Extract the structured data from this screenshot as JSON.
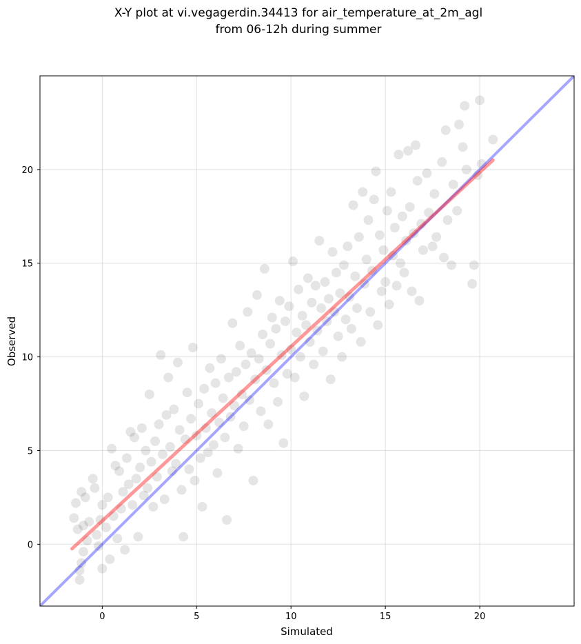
{
  "chart_data": {
    "type": "scatter",
    "title": "X-Y plot at vi.vegagerdin.34413 for air_temperature_at_2m_agl",
    "subtitle": "from 06-12h during summer",
    "xlabel": "Simulated",
    "ylabel": "Observed",
    "xlim": [
      -3.3,
      25.0
    ],
    "ylim": [
      -3.3,
      25.0
    ],
    "xticks": [
      0,
      5,
      10,
      15,
      20
    ],
    "yticks": [
      0,
      5,
      10,
      15,
      20
    ],
    "grid": true,
    "point_color": "#000000",
    "point_alpha": 0.1,
    "reference_line": {
      "slope": 1,
      "intercept": 0,
      "color": "#0000ff",
      "alpha": 0.35
    },
    "regression_line": {
      "slope": 0.93,
      "intercept": 1.25,
      "x_range": [
        -1.6,
        20.7
      ],
      "color": "#ff0000",
      "alpha": 0.4
    },
    "points": [
      [
        -1.5,
        1.4
      ],
      [
        -1.4,
        2.2
      ],
      [
        -1.3,
        0.8
      ],
      [
        -1.2,
        -1.4
      ],
      [
        -1.2,
        -1.9
      ],
      [
        -1.1,
        -1.0
      ],
      [
        -1.1,
        2.8
      ],
      [
        -1.0,
        -0.4
      ],
      [
        -1.0,
        1.0
      ],
      [
        -0.9,
        2.5
      ],
      [
        -0.8,
        0.2
      ],
      [
        -0.7,
        1.2
      ],
      [
        -0.5,
        3.5
      ],
      [
        -0.4,
        3.0
      ],
      [
        -0.3,
        0.5
      ],
      [
        -0.2,
        -0.1
      ],
      [
        -0.1,
        1.3
      ],
      [
        0.0,
        2.1
      ],
      [
        0.0,
        -1.3
      ],
      [
        0.2,
        0.9
      ],
      [
        0.3,
        2.5
      ],
      [
        0.4,
        -0.8
      ],
      [
        0.5,
        5.1
      ],
      [
        0.6,
        1.5
      ],
      [
        0.7,
        4.2
      ],
      [
        0.8,
        0.3
      ],
      [
        0.9,
        3.9
      ],
      [
        1.0,
        1.9
      ],
      [
        1.1,
        2.8
      ],
      [
        1.2,
        -0.3
      ],
      [
        1.3,
        4.6
      ],
      [
        1.4,
        3.2
      ],
      [
        1.5,
        6.0
      ],
      [
        1.6,
        2.1
      ],
      [
        1.7,
        5.7
      ],
      [
        1.8,
        3.5
      ],
      [
        1.9,
        0.4
      ],
      [
        2.0,
        4.1
      ],
      [
        2.1,
        6.2
      ],
      [
        2.2,
        2.6
      ],
      [
        2.3,
        5.0
      ],
      [
        2.4,
        3.0
      ],
      [
        2.5,
        8.0
      ],
      [
        2.6,
        4.4
      ],
      [
        2.7,
        2.0
      ],
      [
        2.8,
        5.5
      ],
      [
        2.9,
        3.6
      ],
      [
        3.0,
        6.4
      ],
      [
        3.1,
        10.1
      ],
      [
        3.2,
        4.8
      ],
      [
        3.3,
        2.4
      ],
      [
        3.4,
        6.9
      ],
      [
        3.5,
        8.9
      ],
      [
        3.6,
        5.2
      ],
      [
        3.7,
        3.9
      ],
      [
        3.8,
        7.2
      ],
      [
        3.9,
        4.3
      ],
      [
        4.0,
        9.7
      ],
      [
        4.1,
        6.1
      ],
      [
        4.2,
        2.9
      ],
      [
        4.3,
        0.4
      ],
      [
        4.4,
        5.6
      ],
      [
        4.5,
        8.1
      ],
      [
        4.6,
        4.0
      ],
      [
        4.7,
        6.7
      ],
      [
        4.8,
        10.5
      ],
      [
        4.9,
        3.4
      ],
      [
        5.0,
        5.8
      ],
      [
        5.1,
        7.5
      ],
      [
        5.2,
        4.6
      ],
      [
        5.3,
        2.0
      ],
      [
        5.4,
        8.3
      ],
      [
        5.5,
        6.2
      ],
      [
        5.6,
        4.9
      ],
      [
        5.7,
        9.4
      ],
      [
        5.8,
        7.0
      ],
      [
        5.9,
        5.3
      ],
      [
        6.0,
        8.6
      ],
      [
        6.1,
        3.8
      ],
      [
        6.2,
        6.5
      ],
      [
        6.3,
        9.9
      ],
      [
        6.4,
        7.8
      ],
      [
        6.5,
        5.7
      ],
      [
        6.6,
        1.3
      ],
      [
        6.7,
        8.9
      ],
      [
        6.8,
        6.8
      ],
      [
        6.9,
        11.8
      ],
      [
        7.0,
        7.4
      ],
      [
        7.1,
        9.2
      ],
      [
        7.2,
        5.1
      ],
      [
        7.3,
        10.6
      ],
      [
        7.4,
        8.0
      ],
      [
        7.5,
        6.3
      ],
      [
        7.6,
        9.6
      ],
      [
        7.7,
        12.4
      ],
      [
        7.8,
        7.7
      ],
      [
        7.9,
        10.2
      ],
      [
        8.0,
        3.4
      ],
      [
        8.1,
        8.8
      ],
      [
        8.2,
        13.3
      ],
      [
        8.3,
        9.9
      ],
      [
        8.4,
        7.1
      ],
      [
        8.5,
        11.2
      ],
      [
        8.6,
        14.7
      ],
      [
        8.7,
        9.3
      ],
      [
        8.8,
        6.4
      ],
      [
        8.9,
        10.7
      ],
      [
        9.0,
        12.1
      ],
      [
        9.1,
        8.6
      ],
      [
        9.2,
        11.5
      ],
      [
        9.3,
        7.6
      ],
      [
        9.4,
        13.0
      ],
      [
        9.5,
        10.1
      ],
      [
        9.6,
        5.4
      ],
      [
        9.7,
        11.9
      ],
      [
        9.8,
        9.1
      ],
      [
        9.9,
        12.7
      ],
      [
        10.0,
        10.4
      ],
      [
        10.1,
        15.1
      ],
      [
        10.2,
        8.9
      ],
      [
        10.3,
        11.3
      ],
      [
        10.4,
        13.6
      ],
      [
        10.5,
        10.0
      ],
      [
        10.6,
        12.2
      ],
      [
        10.7,
        7.9
      ],
      [
        10.8,
        11.7
      ],
      [
        10.9,
        14.2
      ],
      [
        11.0,
        10.8
      ],
      [
        11.1,
        12.9
      ],
      [
        11.2,
        9.6
      ],
      [
        11.3,
        13.8
      ],
      [
        11.4,
        11.4
      ],
      [
        11.5,
        16.2
      ],
      [
        11.6,
        12.6
      ],
      [
        11.7,
        10.3
      ],
      [
        11.8,
        14.0
      ],
      [
        11.9,
        11.9
      ],
      [
        12.0,
        13.1
      ],
      [
        12.1,
        8.8
      ],
      [
        12.2,
        15.6
      ],
      [
        12.3,
        12.4
      ],
      [
        12.4,
        14.5
      ],
      [
        12.5,
        11.1
      ],
      [
        12.6,
        13.4
      ],
      [
        12.7,
        10.0
      ],
      [
        12.8,
        14.9
      ],
      [
        12.9,
        12.0
      ],
      [
        13.0,
        15.9
      ],
      [
        13.1,
        13.2
      ],
      [
        13.2,
        11.5
      ],
      [
        13.3,
        18.1
      ],
      [
        13.4,
        14.3
      ],
      [
        13.5,
        12.6
      ],
      [
        13.6,
        16.4
      ],
      [
        13.7,
        10.8
      ],
      [
        13.8,
        18.8
      ],
      [
        13.9,
        13.9
      ],
      [
        14.0,
        15.2
      ],
      [
        14.1,
        17.3
      ],
      [
        14.2,
        12.4
      ],
      [
        14.3,
        14.6
      ],
      [
        14.4,
        18.4
      ],
      [
        14.5,
        19.9
      ],
      [
        14.6,
        11.7
      ],
      [
        14.7,
        16.5
      ],
      [
        14.8,
        13.5
      ],
      [
        14.9,
        15.7
      ],
      [
        15.0,
        14.0
      ],
      [
        15.1,
        17.8
      ],
      [
        15.2,
        12.8
      ],
      [
        15.3,
        18.8
      ],
      [
        15.4,
        15.4
      ],
      [
        15.5,
        16.9
      ],
      [
        15.6,
        13.8
      ],
      [
        15.7,
        20.8
      ],
      [
        15.8,
        15.0
      ],
      [
        15.9,
        17.5
      ],
      [
        16.0,
        14.5
      ],
      [
        16.1,
        16.2
      ],
      [
        16.2,
        21.0
      ],
      [
        16.3,
        18.0
      ],
      [
        16.4,
        13.5
      ],
      [
        16.5,
        16.6
      ],
      [
        16.6,
        21.3
      ],
      [
        16.7,
        19.4
      ],
      [
        16.8,
        13.0
      ],
      [
        16.9,
        17.1
      ],
      [
        17.0,
        15.7
      ],
      [
        17.2,
        19.8
      ],
      [
        17.3,
        17.7
      ],
      [
        17.5,
        15.9
      ],
      [
        17.6,
        18.7
      ],
      [
        17.7,
        16.4
      ],
      [
        18.0,
        20.4
      ],
      [
        18.1,
        15.3
      ],
      [
        18.2,
        22.1
      ],
      [
        18.3,
        17.3
      ],
      [
        18.5,
        14.9
      ],
      [
        18.6,
        19.2
      ],
      [
        18.8,
        17.8
      ],
      [
        18.9,
        22.4
      ],
      [
        19.1,
        21.2
      ],
      [
        19.2,
        23.4
      ],
      [
        19.3,
        20.0
      ],
      [
        19.6,
        13.9
      ],
      [
        19.7,
        14.9
      ],
      [
        19.9,
        19.7
      ],
      [
        20.0,
        23.7
      ],
      [
        20.1,
        20.3
      ],
      [
        20.7,
        21.6
      ]
    ]
  }
}
